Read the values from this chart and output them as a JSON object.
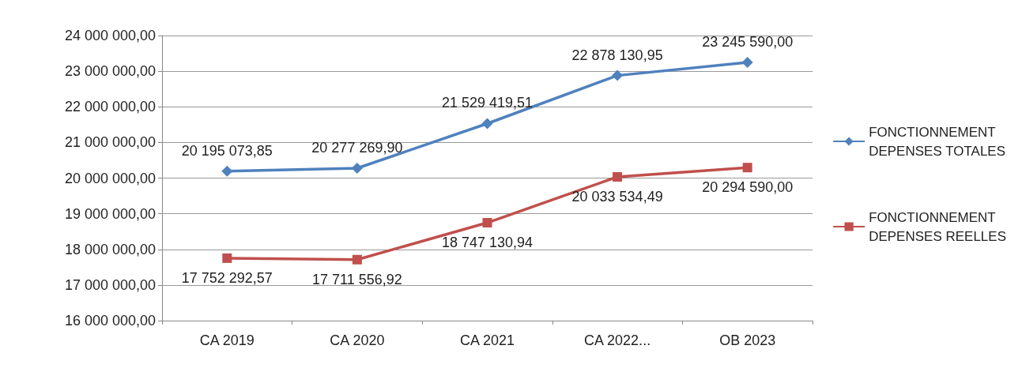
{
  "chart_data": {
    "type": "line",
    "categories": [
      "CA 2019",
      "CA 2020",
      "CA 2021",
      "CA 2022...",
      "OB 2023"
    ],
    "series": [
      {
        "name": "FONCTIONNEMENT DEPENSES TOTALES",
        "color": "#4f81bd",
        "marker": "diamond",
        "values": [
          20195073.85,
          20277269.9,
          21529419.51,
          22878130.95,
          23245590.0
        ],
        "value_labels": [
          "20 195 073,85",
          "20 277 269,90",
          "21 529 419,51",
          "22 878 130,95",
          "23 245 590,00"
        ]
      },
      {
        "name": "FONCTIONNEMENT DEPENSES REELLES",
        "color": "#c0504d",
        "marker": "square",
        "values": [
          17752292.57,
          17711556.92,
          18747130.94,
          20033534.49,
          20294590.0
        ],
        "value_labels": [
          "17 752 292,57",
          "17 711 556,92",
          "18 747 130,94",
          "20 033 534,49",
          "20 294 590,00"
        ]
      }
    ],
    "ylim": [
      16000000,
      24000000
    ],
    "yticks": [
      {
        "value": 16000000,
        "label": "16 000 000,00"
      },
      {
        "value": 17000000,
        "label": "17 000 000,00"
      },
      {
        "value": 18000000,
        "label": "18 000 000,00"
      },
      {
        "value": 19000000,
        "label": "19 000 000,00"
      },
      {
        "value": 20000000,
        "label": "20 000 000,00"
      },
      {
        "value": 21000000,
        "label": "21 000 000,00"
      },
      {
        "value": 22000000,
        "label": "22 000 000,00"
      },
      {
        "value": 23000000,
        "label": "23 000 000,00"
      },
      {
        "value": 24000000,
        "label": "24 000 000,00"
      }
    ],
    "grid": "y",
    "legend": "right",
    "line_style": "solid"
  }
}
